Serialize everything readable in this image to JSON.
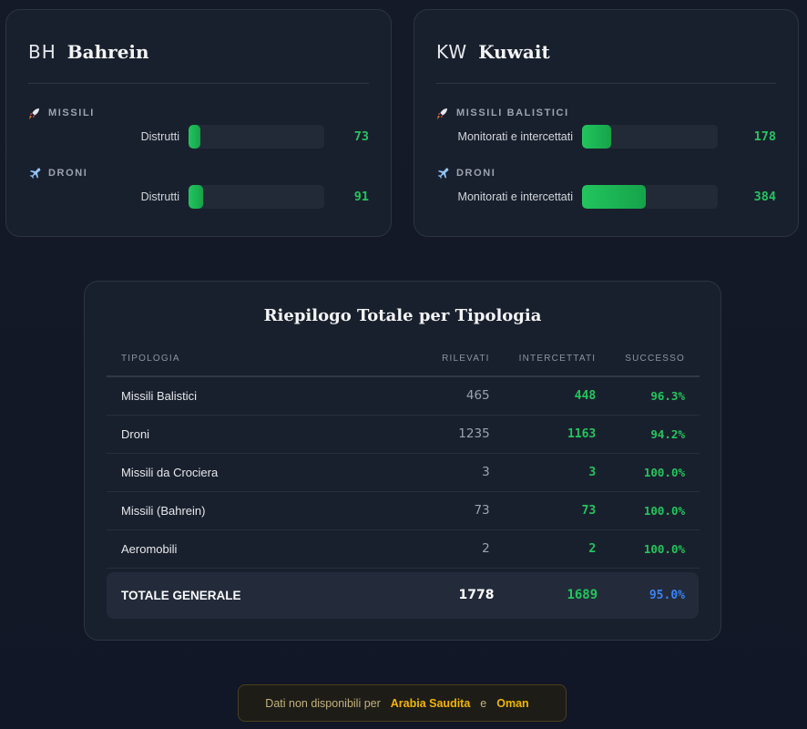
{
  "countries": [
    {
      "code": "BH",
      "name": "Bahrein",
      "metrics": [
        {
          "icon": "rocket-icon",
          "label": "MISSILI",
          "sub": "Distrutti",
          "value": "73",
          "fill": 0.085
        },
        {
          "icon": "plane-icon",
          "label": "DRONI",
          "sub": "Distrutti",
          "value": "91",
          "fill": 0.11
        }
      ]
    },
    {
      "code": "KW",
      "name": "Kuwait",
      "metrics": [
        {
          "icon": "rocket-icon",
          "label": "MISSILI BALISTICI",
          "sub": "Monitorati e intercettati",
          "value": "178",
          "fill": 0.215
        },
        {
          "icon": "plane-icon",
          "label": "DRONI",
          "sub": "Monitorati e intercettati",
          "value": "384",
          "fill": 0.47
        }
      ]
    }
  ],
  "summary": {
    "title": "Riepilogo Totale per Tipologia",
    "headers": {
      "type": "TIPOLOGIA",
      "detected": "RILEVATI",
      "intercepted": "INTERCETTATI",
      "success": "SUCCESSO"
    },
    "rows": [
      {
        "type": "Missili Balistici",
        "detected": "465",
        "intercepted": "448",
        "success": "96.3%"
      },
      {
        "type": "Droni",
        "detected": "1235",
        "intercepted": "1163",
        "success": "94.2%"
      },
      {
        "type": "Missili da Crociera",
        "detected": "3",
        "intercepted": "3",
        "success": "100.0%"
      },
      {
        "type": "Missili (Bahrein)",
        "detected": "73",
        "intercepted": "73",
        "success": "100.0%"
      },
      {
        "type": "Aeromobili",
        "detected": "2",
        "intercepted": "2",
        "success": "100.0%"
      }
    ],
    "total": {
      "type": "TOTALE GENERALE",
      "detected": "1778",
      "intercepted": "1689",
      "success": "95.0%"
    }
  },
  "notice": {
    "prefix": "Dati non disponibili per",
    "country1": "Arabia Saudita",
    "conj": "e",
    "country2": "Oman"
  },
  "colors": {
    "accent_green": "#22c55e",
    "accent_blue": "#3b82f6",
    "notice_gold": "#f4b400"
  }
}
